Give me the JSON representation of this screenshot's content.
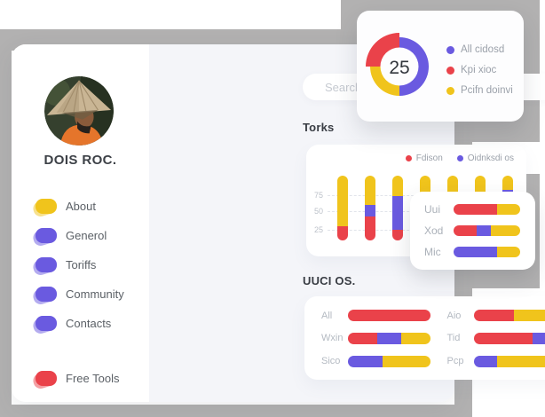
{
  "colors": {
    "red": "#ea424a",
    "purple": "#6a5ae0",
    "yellow": "#f0c41c",
    "gray_bg": "#b2b1b1"
  },
  "profile": {
    "name": "DOIS ROC."
  },
  "menu": {
    "items": [
      {
        "label": "About",
        "color": "#f0c41c"
      },
      {
        "label": "Generol",
        "color": "#6a5ae0"
      },
      {
        "label": "Toriffs",
        "color": "#6a5ae0"
      },
      {
        "label": "Community",
        "color": "#6a5ae0"
      },
      {
        "label": "Contacts",
        "color": "#6a5ae0"
      }
    ],
    "footer_item": {
      "label": "Free Tools",
      "color": "#ea424a"
    }
  },
  "search": {
    "placeholder": "Search..."
  },
  "donut_card": {
    "value": "25",
    "slices": [
      {
        "name": "All cidosd",
        "percent": 50,
        "color": "#6a5ae0"
      },
      {
        "name": "Kpi xioc",
        "percent": 25,
        "color": "#ea424a"
      },
      {
        "name": "Pcifn doinvi",
        "percent": 25,
        "color": "#f0c41c"
      }
    ],
    "legend": [
      {
        "label": "All cidosd",
        "color": "#6a5ae0"
      },
      {
        "label": "Kpi xioc",
        "color": "#ea424a"
      },
      {
        "label": "Pcifn doinvi",
        "color": "#f0c41c"
      }
    ]
  },
  "torks": {
    "title": "Torks",
    "legend": [
      {
        "label": "Fdison",
        "color": "#ea424a"
      },
      {
        "label": "Oidnksdi os",
        "color": "#6a5ae0"
      }
    ],
    "y_ticks": [
      "75",
      "50",
      "25"
    ],
    "bars": [
      {
        "segments": [
          [
            "red",
            22
          ],
          [
            "yellow",
            78
          ]
        ]
      },
      {
        "segments": [
          [
            "red",
            37
          ],
          [
            "purple",
            18
          ],
          [
            "yellow",
            45
          ]
        ]
      },
      {
        "segments": [
          [
            "red",
            16
          ],
          [
            "purple",
            53
          ],
          [
            "yellow",
            31
          ]
        ]
      },
      {
        "segments": [
          [
            "purple",
            45
          ],
          [
            "yellow",
            55
          ]
        ]
      },
      {
        "segments": [
          [
            "red",
            16
          ],
          [
            "purple",
            16
          ],
          [
            "yellow",
            68
          ]
        ]
      },
      {
        "segments": [
          [
            "red",
            46
          ],
          [
            "yellow",
            54
          ]
        ]
      },
      {
        "segments": [
          [
            "red",
            66
          ],
          [
            "purple",
            12
          ],
          [
            "yellow",
            22
          ]
        ]
      }
    ]
  },
  "uuci": {
    "title": "UUCI OS.",
    "left": [
      {
        "label": "All",
        "segments": [
          [
            "red",
            100
          ]
        ]
      },
      {
        "label": "Wxin",
        "segments": [
          [
            "red",
            36
          ],
          [
            "purple",
            29
          ],
          [
            "yellow",
            35
          ]
        ]
      },
      {
        "label": "Sico",
        "segments": [
          [
            "purple",
            42
          ],
          [
            "yellow",
            58
          ]
        ]
      }
    ],
    "right": [
      {
        "label": "Aio",
        "segments": [
          [
            "red",
            49
          ],
          [
            "yellow",
            51
          ]
        ]
      },
      {
        "label": "Tid",
        "segments": [
          [
            "red",
            72
          ],
          [
            "purple",
            16
          ],
          [
            "yellow",
            12
          ]
        ]
      },
      {
        "label": "Pcp",
        "segments": [
          [
            "purple",
            29
          ],
          [
            "yellow",
            71
          ]
        ]
      }
    ]
  },
  "side_card": {
    "rows": [
      {
        "label": "Uui",
        "segments": [
          [
            "red",
            65
          ],
          [
            "yellow",
            35
          ]
        ]
      },
      {
        "label": "Xod",
        "segments": [
          [
            "red",
            34
          ],
          [
            "purple",
            22
          ],
          [
            "yellow",
            44
          ]
        ]
      },
      {
        "label": "Mic",
        "segments": [
          [
            "purple",
            65
          ],
          [
            "yellow",
            35
          ]
        ]
      }
    ]
  }
}
